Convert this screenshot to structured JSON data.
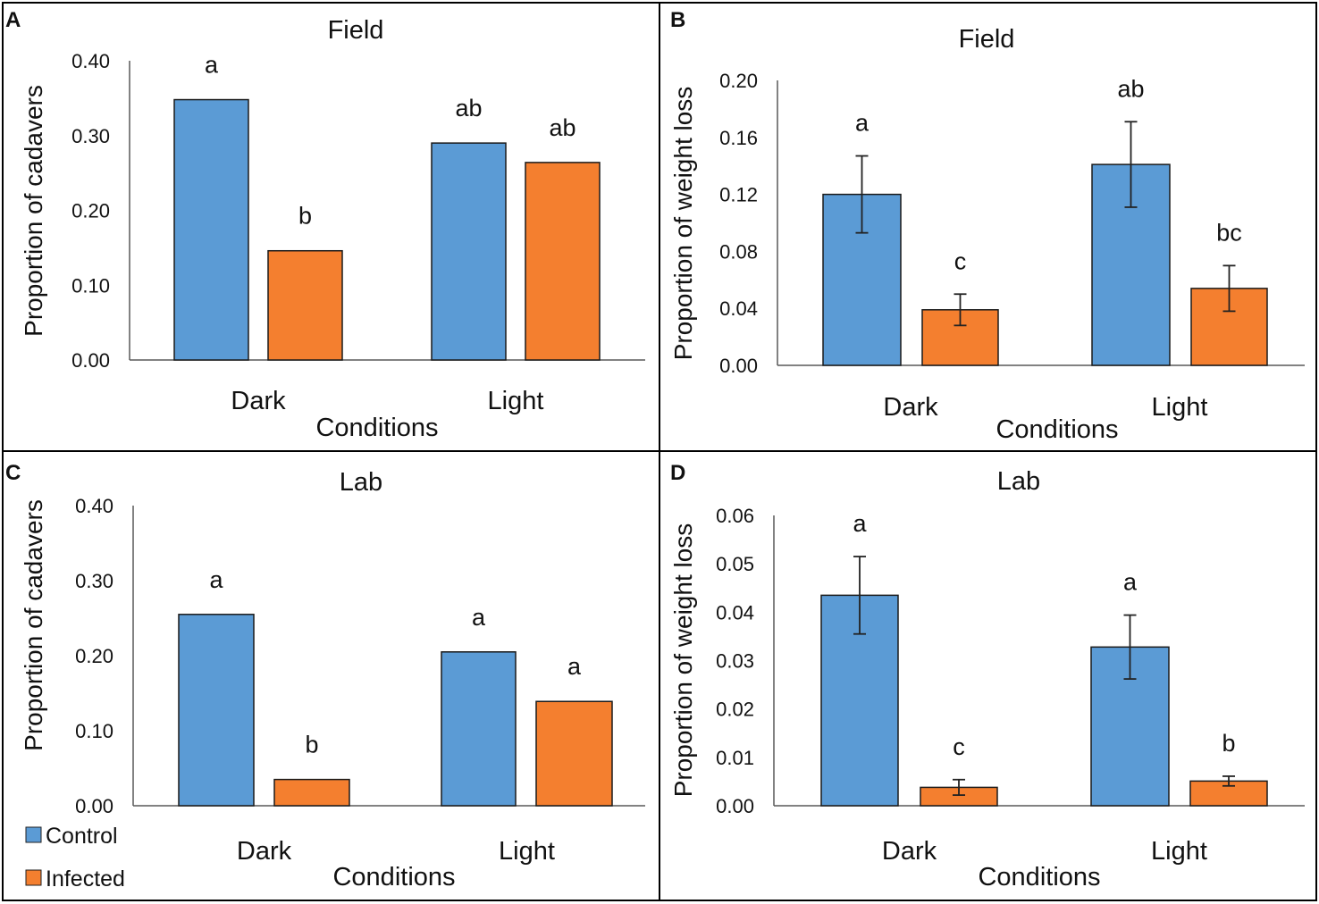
{
  "colors": {
    "control": "#5b9bd5",
    "infected": "#f47f2f",
    "axis": "#595959",
    "errorbar": "#222222"
  },
  "legend": [
    {
      "label": "Control",
      "color": "#5b9bd5"
    },
    {
      "label": "Infected",
      "color": "#f47f2f"
    }
  ],
  "chart_data": [
    {
      "panel_label": "A",
      "type": "bar",
      "title": "Field",
      "xlabel": "Conditions",
      "ylabel": "Proportion of cadavers",
      "categories": [
        "Dark",
        "Light"
      ],
      "ylim": [
        0,
        0.4
      ],
      "yticks": [
        "0.00",
        "0.10",
        "0.20",
        "0.30",
        "0.40"
      ],
      "series": [
        {
          "name": "Control",
          "values": [
            0.348,
            0.29
          ],
          "letters": [
            "a",
            "ab"
          ]
        },
        {
          "name": "Infected",
          "values": [
            0.146,
            0.264
          ],
          "letters": [
            "b",
            "ab"
          ]
        }
      ]
    },
    {
      "panel_label": "B",
      "type": "bar",
      "title": "Field",
      "xlabel": "Conditions",
      "ylabel": "Proportion of weight loss",
      "categories": [
        "Dark",
        "Light"
      ],
      "ylim": [
        0,
        0.2
      ],
      "yticks": [
        "0.00",
        "0.04",
        "0.08",
        "0.12",
        "0.16",
        "0.20"
      ],
      "series": [
        {
          "name": "Control",
          "values": [
            0.12,
            0.141
          ],
          "errors": [
            0.027,
            0.03
          ],
          "letters": [
            "a",
            "ab"
          ]
        },
        {
          "name": "Infected",
          "values": [
            0.039,
            0.054
          ],
          "errors": [
            0.011,
            0.016
          ],
          "letters": [
            "c",
            "bc"
          ]
        }
      ]
    },
    {
      "panel_label": "C",
      "type": "bar",
      "title": "Lab",
      "xlabel": "Conditions",
      "ylabel": "Proportion of cadavers",
      "categories": [
        "Dark",
        "Light"
      ],
      "ylim": [
        0,
        0.4
      ],
      "yticks": [
        "0.00",
        "0.10",
        "0.20",
        "0.30",
        "0.40"
      ],
      "series": [
        {
          "name": "Control",
          "values": [
            0.255,
            0.205
          ],
          "letters": [
            "a",
            "a"
          ]
        },
        {
          "name": "Infected",
          "values": [
            0.035,
            0.139
          ],
          "letters": [
            "b",
            "a"
          ]
        }
      ]
    },
    {
      "panel_label": "D",
      "type": "bar",
      "title": "Lab",
      "xlabel": "Conditions",
      "ylabel": "Proportion of  weight loss",
      "categories": [
        "Dark",
        "Light"
      ],
      "ylim": [
        0,
        0.06
      ],
      "yticks": [
        "0.00",
        "0.01",
        "0.02",
        "0.03",
        "0.04",
        "0.05",
        "0.06"
      ],
      "series": [
        {
          "name": "Control",
          "values": [
            0.0435,
            0.0328
          ],
          "errors": [
            0.008,
            0.0066
          ],
          "letters": [
            "a",
            "a"
          ]
        },
        {
          "name": "Infected",
          "values": [
            0.0038,
            0.0051
          ],
          "errors": [
            0.0016,
            0.001
          ],
          "letters": [
            "c",
            "b"
          ]
        }
      ]
    }
  ]
}
